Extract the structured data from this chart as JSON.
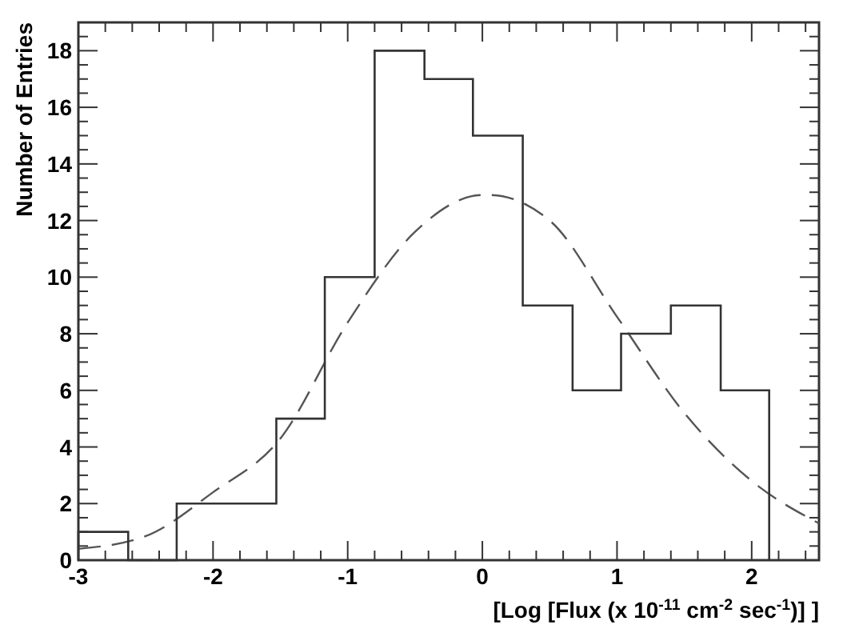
{
  "chart_data": {
    "type": "histogram",
    "ylabel": "Number of Entries",
    "xlabel": "[Log [Flux (x 10$^{-11}$ cm$^{-2}$ sec$^{-1}$)] ]",
    "xlim": [
      -3,
      2.5
    ],
    "xticks": [
      -3,
      {
        "value": -2.8,
        "label": null
      },
      {
        "value": -2.6,
        "label": null
      },
      {
        "value": -2.4,
        "label": null
      },
      {
        "value": -2.2,
        "label": null
      },
      -2,
      {
        "value": -1.8,
        "label": null
      },
      {
        "value": -1.6,
        "label": null
      },
      {
        "value": -1.4,
        "label": null
      },
      {
        "value": -1.2,
        "label": null
      },
      -1,
      {
        "value": -0.8,
        "label": null
      },
      {
        "value": -0.6,
        "label": null
      },
      {
        "value": -0.4,
        "label": null
      },
      {
        "value": -0.2,
        "label": null
      },
      0,
      {
        "value": 0.2,
        "label": null
      },
      {
        "value": 0.4,
        "label": null
      },
      {
        "value": 0.6,
        "label": null
      },
      {
        "value": 0.8,
        "label": null
      },
      1,
      {
        "value": 1.2,
        "label": null
      },
      {
        "value": 1.4,
        "label": null
      },
      {
        "value": 1.6,
        "label": null
      },
      {
        "value": 1.8,
        "label": null
      },
      2,
      {
        "value": 2.2,
        "label": null
      },
      {
        "value": 2.4,
        "label": null
      }
    ],
    "ylim": [
      0,
      19
    ],
    "yticks": [
      0,
      {
        "value": 0.5,
        "label": null
      },
      {
        "value": 1,
        "label": null
      },
      {
        "value": 1.5,
        "label": null
      },
      2,
      {
        "value": 2.5,
        "label": null
      },
      {
        "value": 3,
        "label": null
      },
      {
        "value": 3.5,
        "label": null
      },
      4,
      {
        "value": 4.5,
        "label": null
      },
      {
        "value": 5,
        "label": null
      },
      {
        "value": 5.5,
        "label": null
      },
      6,
      {
        "value": 6.5,
        "label": null
      },
      {
        "value": 7,
        "label": null
      },
      {
        "value": 7.5,
        "label": null
      },
      8,
      {
        "value": 8.5,
        "label": null
      },
      {
        "value": 9,
        "label": null
      },
      {
        "value": 9.5,
        "label": null
      },
      10,
      {
        "value": 10.5,
        "label": null
      },
      {
        "value": 11,
        "label": null
      },
      {
        "value": 11.5,
        "label": null
      },
      12,
      {
        "value": 12.5,
        "label": null
      },
      {
        "value": 13,
        "label": null
      },
      {
        "value": 13.5,
        "label": null
      },
      14,
      {
        "value": 14.5,
        "label": null
      },
      {
        "value": 15,
        "label": null
      },
      {
        "value": 15.5,
        "label": null
      },
      16,
      {
        "value": 16.5,
        "label": null
      },
      {
        "value": 17,
        "label": null
      },
      {
        "value": 17.5,
        "label": null
      },
      18,
      {
        "value": 18.5,
        "label": null
      }
    ],
    "color": "#333333",
    "grid": false,
    "bins": [
      -3,
      -2.63,
      -2.27,
      -1.9,
      -1.53,
      -1.17,
      -0.8,
      -0.43,
      -0.07,
      0.3,
      0.67,
      1.03,
      1.4,
      1.77,
      2.13
    ],
    "values": [
      1,
      0,
      2,
      2,
      5,
      10,
      18,
      17,
      15,
      9,
      6,
      8,
      9,
      6
    ],
    "series": [
      {
        "type": "line",
        "color": "#555555",
        "line_style": "dashed",
        "x": [
          -3,
          -2.5,
          -2,
          -1.5,
          -1,
          -0.5,
          0,
          0.05,
          0.5,
          1,
          1.5,
          2,
          2.5
        ],
        "values": [
          0.4,
          0.85,
          2.4,
          4.3,
          8.4,
          11.6,
          12.9,
          12.9,
          12,
          8.6,
          5.2,
          2.8,
          1.3
        ]
      }
    ]
  }
}
